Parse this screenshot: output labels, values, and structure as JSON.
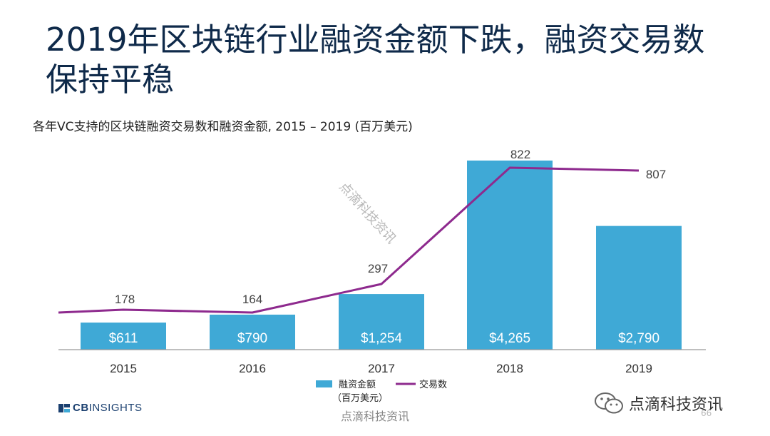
{
  "title": "2019年区块链行业融资金额下跌，融资交易数保持平稳",
  "subtitle": "各年VC支持的区块链融资交易数和融资金额, 2015 – 2019 (百万美元)",
  "chart_data": {
    "type": "bar+line",
    "categories": [
      "2015",
      "2016",
      "2017",
      "2018",
      "2019"
    ],
    "series": [
      {
        "name": "融资金额（百万美元）",
        "type": "bar",
        "values": [
          611,
          790,
          1254,
          4265,
          2790
        ],
        "labels": [
          "$611",
          "$790",
          "$1,254",
          "$4,265",
          "$2,790"
        ],
        "color": "#3fa9d6"
      },
      {
        "name": "交易数",
        "type": "line",
        "values": [
          178,
          164,
          297,
          822,
          807
        ],
        "labels": [
          "178",
          "164",
          "297",
          "822",
          "807"
        ],
        "color": "#8e2a8e"
      }
    ],
    "legend": {
      "bar_label_line1": "融资金额",
      "bar_label_line2": "（百万美元）",
      "line_label": "交易数",
      "placement": "bottom"
    },
    "grid": false
  },
  "watermark": "点滴科技资讯",
  "logo": {
    "cb": "CB",
    "insights": "INSIGHTS"
  },
  "wechat_name": "点滴科技资讯",
  "page_number": "66",
  "colors": {
    "title": "#0f2a4a",
    "bar": "#3fa9d6",
    "line": "#8e2a8e",
    "logo": "#1a3f6f"
  }
}
